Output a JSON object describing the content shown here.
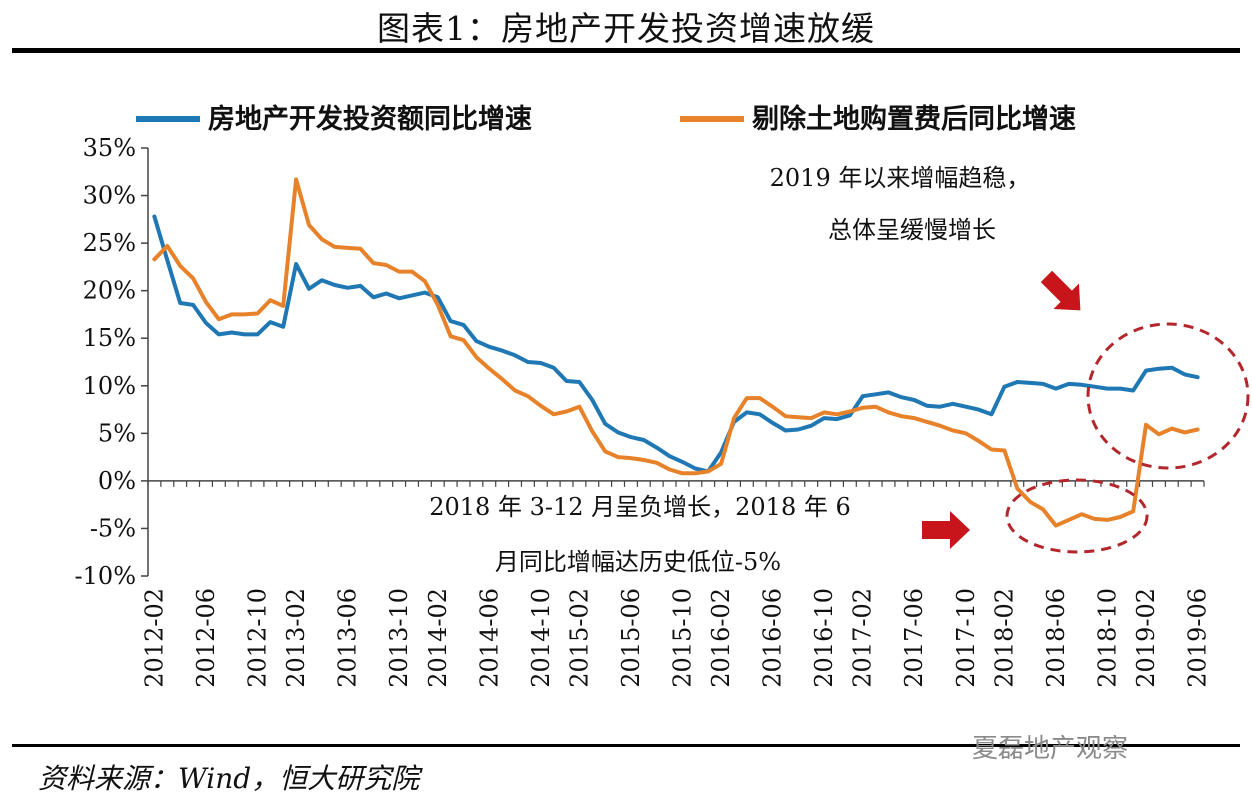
{
  "figure": {
    "title": "图表1：房地产开发投资增速放缓",
    "source": "资料来源：Wind，恒大研究院",
    "watermark": "夏磊地产观察"
  },
  "annotations": {
    "top_line1": "2019 年以来增幅趋稳，",
    "top_line2": "总体呈缓慢增长",
    "bottom_line1": "2018 年 3-12 月呈负增长，2018 年 6",
    "bottom_line2": "月同比增幅达历史低位-5%"
  },
  "colors": {
    "blue": "#1f77b4",
    "orange": "#e8822a",
    "arrow": "#c8151b",
    "circle": "#b3262b"
  },
  "chart_data": {
    "type": "line",
    "ylim": [
      -10,
      35
    ],
    "yticks": [
      -10,
      -5,
      0,
      5,
      10,
      15,
      20,
      25,
      30,
      35
    ],
    "ytick_labels": [
      "-10%",
      "-5%",
      "0%",
      "5%",
      "10%",
      "15%",
      "20%",
      "25%",
      "30%",
      "35%"
    ],
    "xtick_labels": [
      "2012-02",
      "2012-06",
      "2012-10",
      "2013-02",
      "2013-06",
      "2013-10",
      "2014-02",
      "2014-06",
      "2014-10",
      "2015-02",
      "2015-06",
      "2015-10",
      "2016-02",
      "2016-06",
      "2016-10",
      "2017-02",
      "2017-06",
      "2017-10",
      "2018-02",
      "2018-06",
      "2018-10",
      "2019-02",
      "2019-06"
    ],
    "legend_position": "top",
    "x": [
      "2012-02",
      "2012-03",
      "2012-04",
      "2012-05",
      "2012-06",
      "2012-07",
      "2012-08",
      "2012-09",
      "2012-10",
      "2012-11",
      "2012-12",
      "2013-02",
      "2013-03",
      "2013-04",
      "2013-05",
      "2013-06",
      "2013-07",
      "2013-08",
      "2013-09",
      "2013-10",
      "2013-11",
      "2013-12",
      "2014-02",
      "2014-03",
      "2014-04",
      "2014-05",
      "2014-06",
      "2014-07",
      "2014-08",
      "2014-09",
      "2014-10",
      "2014-11",
      "2014-12",
      "2015-02",
      "2015-03",
      "2015-04",
      "2015-05",
      "2015-06",
      "2015-07",
      "2015-08",
      "2015-09",
      "2015-10",
      "2015-11",
      "2015-12",
      "2016-02",
      "2016-03",
      "2016-04",
      "2016-05",
      "2016-06",
      "2016-07",
      "2016-08",
      "2016-09",
      "2016-10",
      "2016-11",
      "2016-12",
      "2017-02",
      "2017-03",
      "2017-04",
      "2017-05",
      "2017-06",
      "2017-07",
      "2017-08",
      "2017-09",
      "2017-10",
      "2017-11",
      "2017-12",
      "2018-02",
      "2018-03",
      "2018-04",
      "2018-05",
      "2018-06",
      "2018-07",
      "2018-08",
      "2018-09",
      "2018-10",
      "2018-11",
      "2018-12",
      "2019-02",
      "2019-03",
      "2019-04",
      "2019-05",
      "2019-06"
    ],
    "series": [
      {
        "name": "房地产开发投资额同比增速",
        "color": "#1f77b4",
        "values": [
          27.8,
          23.2,
          18.7,
          18.5,
          16.6,
          15.4,
          15.6,
          15.4,
          15.4,
          16.7,
          16.2,
          22.8,
          20.2,
          21.1,
          20.6,
          20.3,
          20.5,
          19.3,
          19.7,
          19.2,
          19.5,
          19.8,
          19.3,
          16.8,
          16.4,
          14.7,
          14.1,
          13.7,
          13.2,
          12.5,
          12.4,
          11.9,
          10.5,
          10.4,
          8.5,
          6.0,
          5.1,
          4.6,
          4.3,
          3.5,
          2.6,
          2.0,
          1.3,
          1.0,
          3.0,
          6.2,
          7.2,
          7.0,
          6.1,
          5.3,
          5.4,
          5.8,
          6.6,
          6.5,
          6.9,
          8.9,
          9.1,
          9.3,
          8.8,
          8.5,
          7.9,
          7.8,
          8.1,
          7.8,
          7.5,
          7.0,
          9.9,
          10.4,
          10.3,
          10.2,
          9.7,
          10.2,
          10.1,
          9.9,
          9.7,
          9.7,
          9.5,
          11.6,
          11.8,
          11.9,
          11.2,
          10.9
        ]
      },
      {
        "name": "剔除土地购置费后同比增速",
        "color": "#e8822a",
        "values": [
          23.3,
          24.7,
          22.6,
          21.3,
          18.8,
          17.0,
          17.5,
          17.5,
          17.6,
          19.0,
          18.4,
          31.7,
          26.9,
          25.4,
          24.6,
          24.5,
          24.4,
          22.9,
          22.7,
          22.0,
          22.0,
          21.0,
          18.5,
          15.2,
          14.8,
          13.0,
          11.8,
          10.7,
          9.5,
          8.9,
          7.9,
          7.0,
          7.3,
          7.8,
          5.2,
          3.1,
          2.5,
          2.4,
          2.2,
          1.9,
          1.2,
          0.8,
          0.8,
          1.0,
          1.8,
          6.6,
          8.7,
          8.7,
          7.8,
          6.8,
          6.7,
          6.6,
          7.2,
          7.0,
          7.3,
          7.7,
          7.8,
          7.2,
          6.8,
          6.6,
          6.2,
          5.8,
          5.3,
          5.0,
          4.2,
          3.3,
          3.2,
          -0.8,
          -2.2,
          -3.0,
          -4.7,
          -4.1,
          -3.5,
          -4.0,
          -4.1,
          -3.8,
          -3.2,
          5.9,
          4.9,
          5.5,
          5.1,
          5.4
        ]
      }
    ]
  }
}
